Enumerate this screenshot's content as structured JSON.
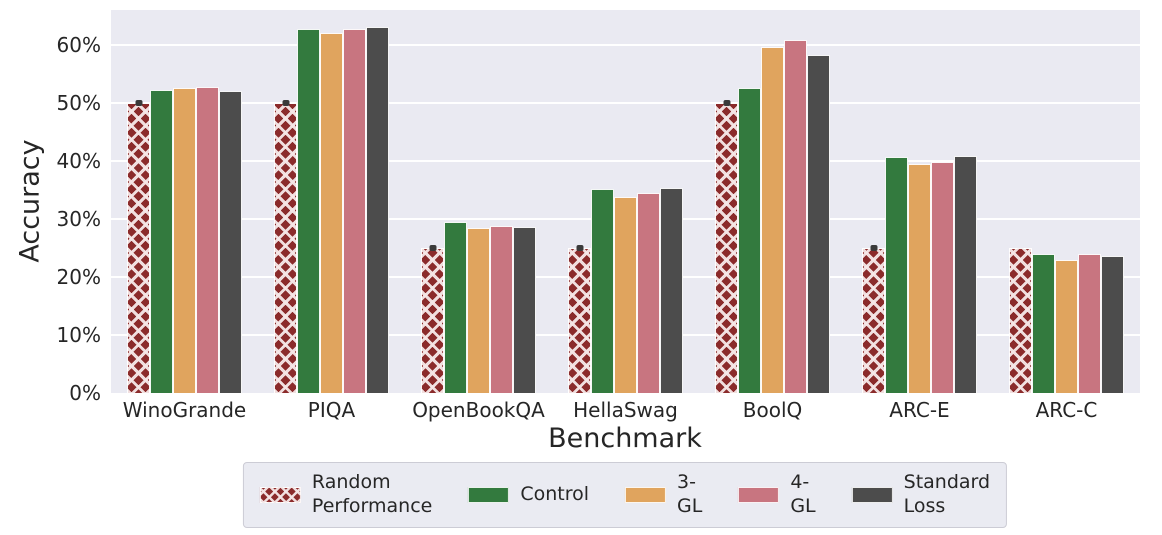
{
  "chart_data": {
    "type": "bar",
    "title": "",
    "xlabel": "Benchmark",
    "ylabel": "Accuracy",
    "ylim": [
      0,
      66
    ],
    "grid": true,
    "plot_background": "#eaeaf2",
    "grid_color": "#ffffff",
    "text_color": "#262626",
    "legend_position": "bottom-center",
    "yticks": [
      {
        "value": 0,
        "label": "0%"
      },
      {
        "value": 10,
        "label": "10%"
      },
      {
        "value": 20,
        "label": "20%"
      },
      {
        "value": 30,
        "label": "30%"
      },
      {
        "value": 40,
        "label": "40%"
      },
      {
        "value": 50,
        "label": "50%"
      },
      {
        "value": 60,
        "label": "60%"
      }
    ],
    "categories": [
      "WinoGrande",
      "PIQA",
      "OpenBookQA",
      "HellaSwag",
      "BoolQ",
      "ARC-E",
      "ARC-C"
    ],
    "series": [
      {
        "name": "Random Performance",
        "legend_label": "Random\nPerformance",
        "color": "#8b2b2b",
        "hatch": true,
        "values": [
          50.0,
          50.0,
          25.0,
          25.0,
          50.0,
          25.0,
          25.0
        ],
        "error_caps": [
          true,
          true,
          true,
          true,
          true,
          true,
          false
        ]
      },
      {
        "name": "Control",
        "legend_label": "Control",
        "color": "#337a3e",
        "hatch": false,
        "values": [
          52.3,
          62.7,
          29.5,
          35.2,
          52.6,
          40.7,
          23.9
        ]
      },
      {
        "name": "3-GL",
        "legend_label": "3-GL",
        "color": "#e0a45e",
        "hatch": false,
        "values": [
          52.6,
          62.0,
          28.5,
          33.8,
          59.6,
          39.4,
          23.0
        ]
      },
      {
        "name": "4-GL",
        "legend_label": "4-GL",
        "color": "#c87580",
        "hatch": false,
        "values": [
          52.7,
          62.8,
          28.8,
          34.4,
          60.8,
          39.8,
          23.9
        ]
      },
      {
        "name": "Standard Loss",
        "legend_label": "Standard Loss",
        "color": "#4c4c4c",
        "hatch": false,
        "values": [
          52.1,
          63.0,
          28.6,
          35.4,
          58.2,
          40.8,
          23.6
        ]
      }
    ]
  }
}
